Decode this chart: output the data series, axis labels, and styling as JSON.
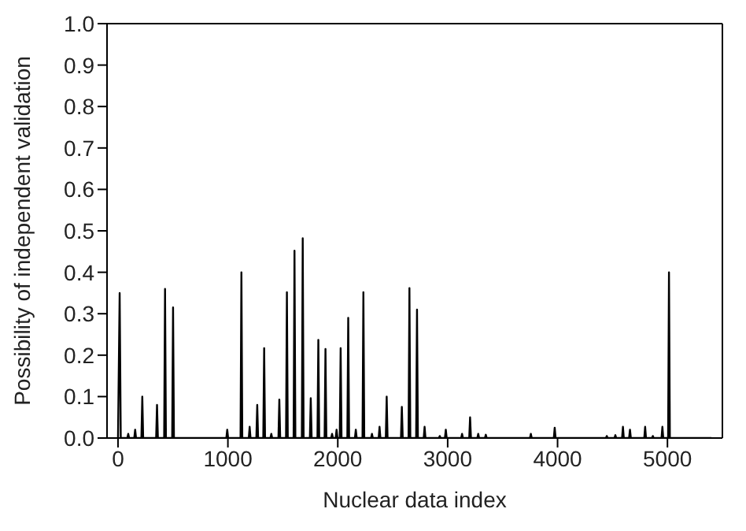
{
  "chart_data": {
    "type": "line",
    "xlabel": "Nuclear data index",
    "ylabel": "Possibility of independent validation",
    "x": [
      0,
      15,
      25,
      85,
      93,
      101,
      148,
      156,
      164,
      213,
      221,
      229,
      347,
      355,
      363,
      420,
      428,
      436,
      493,
      501,
      509,
      986,
      994,
      1002,
      1115,
      1123,
      1131,
      1190,
      1198,
      1206,
      1259,
      1267,
      1275,
      1322,
      1330,
      1338,
      1387,
      1395,
      1403,
      1460,
      1468,
      1476,
      1529,
      1537,
      1545,
      1598,
      1606,
      1614,
      1673,
      1681,
      1689,
      1746,
      1754,
      1762,
      1815,
      1823,
      1831,
      1880,
      1888,
      1896,
      1940,
      1948,
      1956,
      1981,
      1989,
      1997,
      2018,
      2026,
      2034,
      2087,
      2095,
      2103,
      2156,
      2164,
      2172,
      2225,
      2233,
      2241,
      2303,
      2311,
      2319,
      2372,
      2380,
      2388,
      2437,
      2445,
      2453,
      2575,
      2583,
      2591,
      2644,
      2652,
      2660,
      2713,
      2721,
      2729,
      2782,
      2790,
      2798,
      2920,
      2928,
      2936,
      2975,
      2983,
      2991,
      3123,
      3131,
      3139,
      3196,
      3204,
      3212,
      3270,
      3278,
      3286,
      3339,
      3347,
      3355,
      3749,
      3757,
      3765,
      3966,
      3974,
      3982,
      4440,
      4448,
      4456,
      4518,
      4526,
      4534,
      4587,
      4595,
      4603,
      4651,
      4659,
      4667,
      4789,
      4797,
      4805,
      4859,
      4867,
      4875,
      4946,
      4954,
      4962,
      5006,
      5014,
      5022,
      5400
    ],
    "values": [
      0,
      0.35,
      0,
      0,
      0.01,
      0,
      0,
      0.02,
      0,
      0,
      0.1,
      0,
      0,
      0.08,
      0,
      0,
      0.36,
      0,
      0,
      0.315,
      0,
      0,
      0.02,
      0,
      0,
      0.4,
      0,
      0,
      0.027,
      0,
      0,
      0.08,
      0,
      0,
      0.217,
      0,
      0,
      0.01,
      0,
      0,
      0.093,
      0,
      0,
      0.352,
      0,
      0,
      0.452,
      0,
      0,
      0.482,
      0,
      0,
      0.096,
      0,
      0,
      0.237,
      0,
      0,
      0.215,
      0,
      0,
      0.01,
      0,
      0,
      0.02,
      0,
      0,
      0.217,
      0,
      0,
      0.29,
      0,
      0,
      0.02,
      0,
      0,
      0.352,
      0,
      0,
      0.01,
      0,
      0,
      0.027,
      0,
      0,
      0.1,
      0,
      0,
      0.075,
      0,
      0,
      0.362,
      0,
      0,
      0.31,
      0,
      0,
      0.027,
      0,
      0,
      0.005,
      0,
      0,
      0.02,
      0,
      0,
      0.01,
      0,
      0,
      0.05,
      0,
      0,
      0.01,
      0,
      0,
      0.008,
      0,
      0,
      0.01,
      0,
      0,
      0.025,
      0,
      0,
      0.005,
      0,
      0,
      0.007,
      0,
      0,
      0.027,
      0,
      0,
      0.02,
      0,
      0,
      0.027,
      0,
      0,
      0.005,
      0,
      0,
      0.027,
      0,
      0,
      0.4,
      0,
      0
    ],
    "color": "#000000",
    "marker": "none",
    "line_style": "solid",
    "grid": false,
    "legend": false,
    "xlim": [
      -100,
      5500
    ],
    "xticks": [
      0,
      1000,
      2000,
      3000,
      4000,
      5000
    ],
    "ylim": [
      0,
      1
    ],
    "yticks": [
      {
        "value": 0,
        "label": "0.0"
      },
      {
        "value": 0.1,
        "label": "0.1"
      },
      {
        "value": 0.2,
        "label": "0.2"
      },
      {
        "value": 0.3,
        "label": "0.3"
      },
      {
        "value": 0.4,
        "label": "0.4"
      },
      {
        "value": 0.5,
        "label": "0.5"
      },
      {
        "value": 0.6,
        "label": "0.6"
      },
      {
        "value": 0.7,
        "label": "0.7"
      },
      {
        "value": 0.8,
        "label": "0.8"
      },
      {
        "value": 0.9,
        "label": "0.9"
      },
      {
        "value": 1,
        "label": "1.0"
      }
    ]
  }
}
